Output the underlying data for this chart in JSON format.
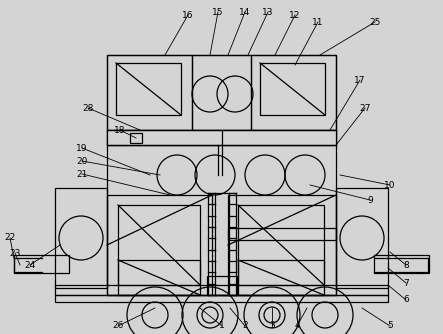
{
  "bg_color": "#d4d4d4",
  "line_color": "#000000",
  "fig_width": 4.43,
  "fig_height": 3.34,
  "dpi": 100
}
